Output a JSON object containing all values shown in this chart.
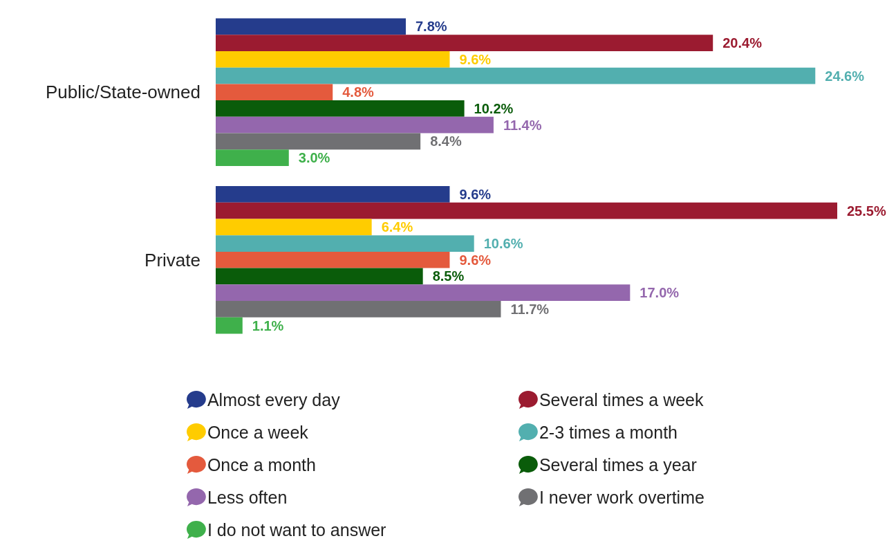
{
  "chart_data": {
    "type": "bar",
    "orientation": "horizontal",
    "categories": [
      "Public/State-owned",
      "Private"
    ],
    "legend": "bottom",
    "series": [
      {
        "name": "Almost every day",
        "color": "#253c8c",
        "values": [
          7.8,
          9.6
        ],
        "value_labels": [
          "7.8%",
          "9.6%"
        ]
      },
      {
        "name": "Several times a week",
        "color": "#9b1b30",
        "values": [
          20.4,
          25.5
        ],
        "value_labels": [
          "20.4%",
          "25.5%"
        ]
      },
      {
        "name": "Once a week",
        "color": "#ffcc00",
        "values": [
          9.6,
          6.4
        ],
        "value_labels": [
          "9.6%",
          "6.4%"
        ]
      },
      {
        "name": "2-3 times a month",
        "color": "#52afaf",
        "values": [
          24.6,
          10.6
        ],
        "value_labels": [
          "24.6%",
          "10.6%"
        ]
      },
      {
        "name": "Once a month",
        "color": "#e45a3d",
        "values": [
          4.8,
          9.6
        ],
        "value_labels": [
          "4.8%",
          "9.6%"
        ]
      },
      {
        "name": "Several times a year",
        "color": "#0a5c0a",
        "values": [
          10.2,
          8.5
        ],
        "value_labels": [
          "10.2%",
          "8.5%"
        ]
      },
      {
        "name": "Less often",
        "color": "#9467ad",
        "values": [
          11.4,
          17.0
        ],
        "value_labels": [
          "11.4%",
          "17.0%"
        ]
      },
      {
        "name": "I never work overtime",
        "color": "#707073",
        "values": [
          8.4,
          11.7
        ],
        "value_labels": [
          "8.4%",
          "11.7%"
        ]
      },
      {
        "name": "I do not want to answer",
        "color": "#3fb04b",
        "values": [
          3.0,
          1.1
        ],
        "value_labels": [
          "3.0%",
          "1.1%"
        ]
      }
    ]
  }
}
